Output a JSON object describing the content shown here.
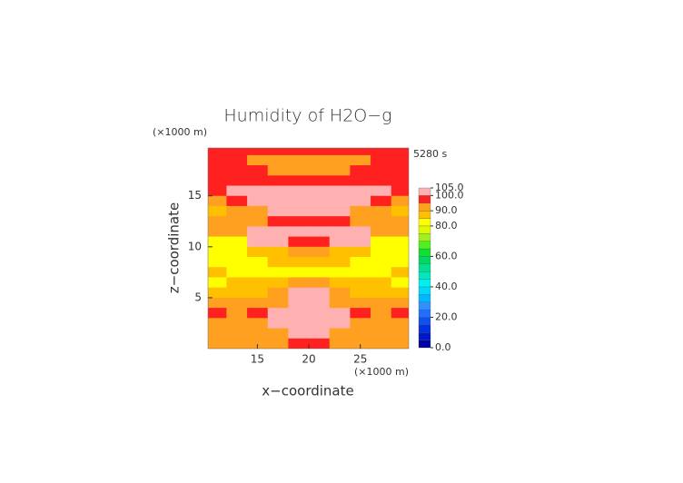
{
  "chart_data": {
    "type": "contour",
    "title": "Humidity of H2O−g",
    "time_label": "5280 s",
    "x_label": "x−coordinate",
    "y_label": "z−coordinate",
    "x_unit": "(×1000 m)",
    "y_unit": "(×1000 m)",
    "xlim": [
      10.2,
      29.7
    ],
    "ylim": [
      0,
      19.7
    ],
    "xticks": [
      15,
      20,
      25
    ],
    "yticks": [
      5,
      10,
      15
    ],
    "x": [
      11,
      13,
      15,
      17,
      19,
      21,
      23,
      25,
      27,
      29
    ],
    "z": [
      19.5,
      18.5,
      17.5,
      16.5,
      15.5,
      14.5,
      13.5,
      12.5,
      11.5,
      10.5,
      9.5,
      8.5,
      7.5,
      6.5,
      5.5,
      4.5,
      3.5,
      2.5,
      1.5,
      0.5
    ],
    "values": [
      [
        97,
        97,
        97,
        97,
        97,
        97,
        97,
        97,
        97,
        97
      ],
      [
        97,
        97,
        92,
        92,
        92,
        92,
        92,
        92,
        97,
        97
      ],
      [
        97,
        97,
        97,
        92,
        92,
        92,
        92,
        97,
        97,
        97
      ],
      [
        97,
        97,
        97,
        97,
        97,
        97,
        97,
        97,
        97,
        97
      ],
      [
        97,
        102,
        102,
        102,
        102,
        102,
        102,
        102,
        102,
        97
      ],
      [
        92,
        97,
        102,
        102,
        102,
        102,
        102,
        102,
        97,
        92
      ],
      [
        88,
        92,
        92,
        102,
        102,
        102,
        102,
        92,
        92,
        88
      ],
      [
        92,
        92,
        92,
        97,
        97,
        97,
        97,
        92,
        92,
        92
      ],
      [
        90,
        92,
        102,
        102,
        102,
        102,
        102,
        102,
        92,
        90
      ],
      [
        80,
        82,
        102,
        102,
        97,
        97,
        102,
        102,
        82,
        80
      ],
      [
        80,
        80,
        88,
        88,
        92,
        92,
        88,
        88,
        80,
        80
      ],
      [
        80,
        80,
        80,
        88,
        88,
        88,
        88,
        80,
        80,
        80
      ],
      [
        87,
        80,
        80,
        80,
        80,
        80,
        80,
        80,
        80,
        87
      ],
      [
        80,
        87,
        87,
        87,
        92,
        92,
        87,
        87,
        87,
        80
      ],
      [
        88,
        88,
        88,
        92,
        102,
        102,
        92,
        88,
        88,
        88
      ],
      [
        92,
        92,
        92,
        92,
        102,
        102,
        92,
        92,
        92,
        92
      ],
      [
        96,
        92,
        97,
        102,
        102,
        102,
        102,
        97,
        92,
        96
      ],
      [
        92,
        92,
        92,
        102,
        102,
        102,
        102,
        92,
        92,
        92
      ],
      [
        90,
        92,
        92,
        92,
        102,
        102,
        92,
        92,
        92,
        90
      ],
      [
        92,
        92,
        92,
        92,
        97,
        97,
        92,
        92,
        92,
        92
      ]
    ],
    "levels": [
      0,
      5,
      10,
      15,
      20,
      25,
      30,
      35,
      40,
      45,
      50,
      55,
      60,
      65,
      70,
      75,
      80,
      85,
      90,
      95,
      100,
      105
    ],
    "colors": [
      "#0000a8",
      "#0018c8",
      "#0030e0",
      "#1050f0",
      "#2070ff",
      "#3090ff",
      "#00b8ff",
      "#00d8f8",
      "#00f0f0",
      "#00e8c0",
      "#00e090",
      "#00d860",
      "#10e030",
      "#50f020",
      "#a0f020",
      "#e0f800",
      "#ffff00",
      "#ffc000",
      "#ffa020",
      "#ff2020",
      "#ffb0b0"
    ],
    "colorbar_ticks": [
      {
        "value": 0,
        "label": "0.0"
      },
      {
        "value": 20,
        "label": "20.0"
      },
      {
        "value": 40,
        "label": "40.0"
      },
      {
        "value": 60,
        "label": "60.0"
      },
      {
        "value": 80,
        "label": "80.0"
      },
      {
        "value": 90,
        "label": "90.0"
      },
      {
        "value": 100,
        "label": "100.0"
      },
      {
        "value": 105,
        "label": "105.0"
      }
    ]
  }
}
